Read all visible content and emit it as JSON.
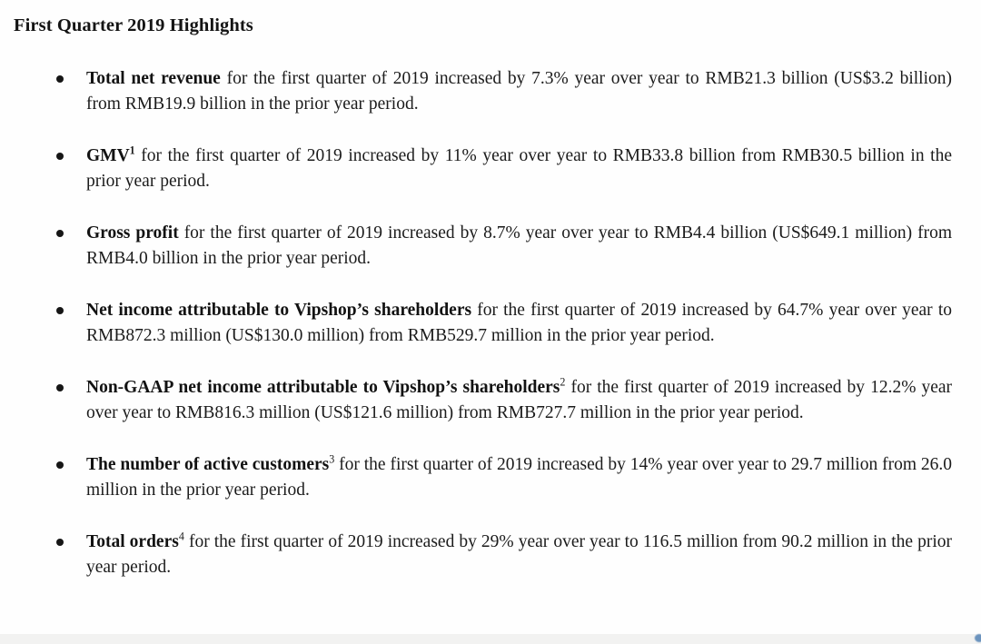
{
  "document": {
    "title": "First Quarter 2019 Highlights",
    "highlights": [
      {
        "lead": "Total net revenue",
        "sup": "",
        "rest": " for the first quarter of 2019 increased by 7.3% year over year to RMB21.3 billion (US$3.2 billion) from RMB19.9 billion in the prior year period."
      },
      {
        "lead": "GMV",
        "sup": "1",
        "rest": " for the first quarter of 2019 increased by 11% year over year to RMB33.8 billion from RMB30.5 billion in the prior year period."
      },
      {
        "lead": "Gross profit",
        "sup": "",
        "rest": " for the first quarter of 2019 increased by 8.7% year over year to RMB4.4 billion (US$649.1 million) from RMB4.0 billion in the prior year period."
      },
      {
        "lead": "Net income attributable to Vipshop’s shareholders",
        "sup": "",
        "rest": " for the first quarter of 2019 increased by 64.7% year over year to RMB872.3 million (US$130.0 million) from RMB529.7 million in the prior year period."
      },
      {
        "lead": "Non-GAAP net income attributable to Vipshop’s shareholders",
        "sup": "2",
        "rest": " for the first quarter of 2019 increased by 12.2% year over year to RMB816.3 million (US$121.6 million) from RMB727.7 million in the prior year period."
      },
      {
        "lead": "The number of active customers",
        "sup": "3",
        "rest": " for the first quarter of 2019 increased by 14% year over year to 29.7 million from 26.0 million in the prior year period."
      },
      {
        "lead": "Total orders",
        "sup": "4",
        "rest": " for the first quarter of 2019 increased by 29% year over year to 116.5 million from 90.2 million in the prior year period."
      }
    ]
  }
}
